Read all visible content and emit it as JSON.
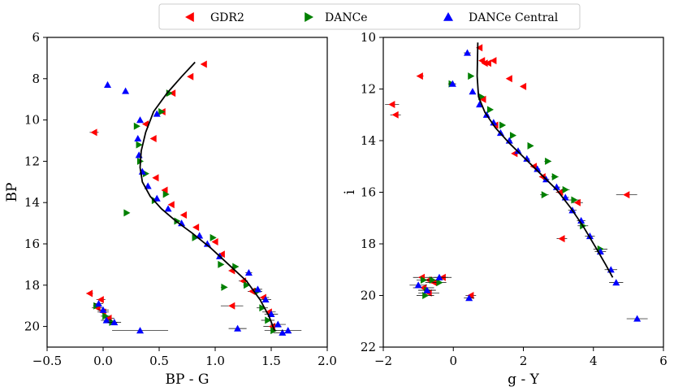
{
  "legend": {
    "entries": [
      {
        "name": "GDR2",
        "color": "#ff0000",
        "marker": "triangle-left"
      },
      {
        "name": "DANCe",
        "color": "#008000",
        "marker": "triangle-right"
      },
      {
        "name": "DANCe Central",
        "color": "#0000ff",
        "marker": "triangle-up"
      }
    ]
  },
  "chart_data": [
    {
      "type": "scatter",
      "title": "",
      "xlabel": "BP - G",
      "ylabel": "BP",
      "xlim": [
        -0.5,
        2.0
      ],
      "ylim": [
        21,
        6
      ],
      "y_inverted": true,
      "xticks": [
        "−0.5",
        "0.0",
        "0.5",
        "1.0",
        "1.5",
        "2.0"
      ],
      "xtick_values": [
        -0.5,
        0.0,
        0.5,
        1.0,
        1.5,
        2.0
      ],
      "yticks": [
        "6",
        "8",
        "10",
        "12",
        "14",
        "16",
        "18",
        "20"
      ],
      "ytick_values": [
        6,
        8,
        10,
        12,
        14,
        16,
        18,
        20
      ],
      "grid": false,
      "legend_position": "top-center",
      "isochrone": {
        "color": "#000000",
        "x": [
          0.82,
          0.7,
          0.57,
          0.45,
          0.38,
          0.34,
          0.33,
          0.35,
          0.42,
          0.52,
          0.65,
          0.8,
          0.96,
          1.12,
          1.28,
          1.4,
          1.48,
          1.53
        ],
        "y": [
          7.2,
          7.9,
          8.7,
          9.6,
          10.6,
          11.5,
          12.3,
          13.0,
          13.7,
          14.3,
          14.9,
          15.5,
          16.2,
          17.0,
          17.8,
          18.7,
          19.5,
          20.2
        ]
      },
      "series": [
        {
          "name": "GDR2",
          "color": "#ff0000",
          "marker": "triangle-left",
          "x": [
            0.9,
            0.78,
            0.62,
            0.53,
            0.38,
            0.45,
            -0.08,
            0.47,
            0.55,
            0.61,
            0.72,
            0.83,
            1.0,
            1.06,
            1.15,
            1.25,
            1.33,
            1.43,
            1.48,
            1.51,
            1.15,
            -0.12,
            -0.02,
            0.0,
            0.05,
            -0.05
          ],
          "y": [
            7.3,
            7.9,
            8.7,
            9.6,
            10.2,
            10.9,
            10.6,
            12.8,
            13.4,
            14.1,
            14.6,
            15.2,
            15.9,
            16.5,
            17.3,
            17.8,
            18.3,
            18.6,
            19.3,
            20.0,
            19.0,
            18.4,
            18.7,
            19.3,
            19.6,
            19.1
          ],
          "xerr": [
            0.01,
            0.01,
            0.01,
            0.01,
            0.01,
            0.01,
            0.04,
            0.01,
            0.01,
            0.01,
            0.01,
            0.01,
            0.02,
            0.02,
            0.03,
            0.04,
            0.04,
            0.05,
            0.06,
            0.08,
            0.1,
            0.03,
            0.04,
            0.05,
            0.05,
            0.05
          ]
        },
        {
          "name": "DANCe",
          "color": "#008000",
          "marker": "triangle-right",
          "x": [
            0.59,
            0.52,
            0.3,
            0.32,
            0.33,
            0.38,
            0.21,
            0.46,
            0.56,
            0.66,
            0.82,
            0.98,
            1.05,
            1.08,
            1.18,
            1.28,
            1.38,
            1.42,
            1.47,
            1.52,
            -0.06,
            0.02,
            0.08
          ],
          "y": [
            8.7,
            9.6,
            10.3,
            11.2,
            12.0,
            12.6,
            14.5,
            13.9,
            13.6,
            14.9,
            15.7,
            15.7,
            17.0,
            18.1,
            17.1,
            18.0,
            18.3,
            19.1,
            19.7,
            20.2,
            19.0,
            19.5,
            19.8
          ],
          "xerr": [
            0.01,
            0.01,
            0.01,
            0.01,
            0.01,
            0.01,
            0.02,
            0.01,
            0.01,
            0.01,
            0.02,
            0.02,
            0.02,
            0.03,
            0.03,
            0.03,
            0.04,
            0.05,
            0.06,
            0.08,
            0.03,
            0.04,
            0.05
          ]
        },
        {
          "name": "DANCe Central",
          "color": "#0000ff",
          "marker": "triangle-up",
          "x": [
            0.04,
            0.2,
            0.48,
            0.33,
            0.31,
            0.32,
            0.35,
            0.4,
            0.48,
            0.58,
            0.7,
            0.86,
            0.93,
            1.04,
            1.3,
            1.38,
            1.45,
            1.5,
            1.56,
            1.6,
            1.65,
            1.2,
            0.33,
            -0.04,
            0.0,
            0.03,
            0.1
          ],
          "y": [
            8.3,
            8.6,
            9.7,
            10.0,
            10.9,
            11.7,
            12.5,
            13.2,
            13.8,
            14.3,
            15.0,
            15.6,
            16.0,
            16.6,
            17.4,
            18.2,
            18.7,
            19.4,
            19.9,
            20.3,
            20.2,
            20.1,
            20.2,
            18.9,
            19.2,
            19.7,
            19.8
          ],
          "xerr": [
            0.01,
            0.01,
            0.01,
            0.01,
            0.01,
            0.01,
            0.01,
            0.01,
            0.01,
            0.01,
            0.01,
            0.02,
            0.02,
            0.02,
            0.03,
            0.04,
            0.05,
            0.06,
            0.07,
            0.08,
            0.12,
            0.08,
            0.25,
            0.04,
            0.05,
            0.05,
            0.06
          ]
        }
      ]
    },
    {
      "type": "scatter",
      "title": "",
      "xlabel": "g - Y",
      "ylabel": "i",
      "xlim": [
        -2,
        6
      ],
      "ylim": [
        22,
        10
      ],
      "y_inverted": true,
      "xticks": [
        "−2",
        "0",
        "2",
        "4",
        "6"
      ],
      "xtick_values": [
        -2,
        0,
        2,
        4,
        6
      ],
      "yticks": [
        "10",
        "12",
        "14",
        "16",
        "18",
        "20",
        "22"
      ],
      "ytick_values": [
        10,
        12,
        14,
        16,
        18,
        20,
        22
      ],
      "grid": false,
      "isochrone": {
        "color": "#000000",
        "x": [
          0.7,
          0.68,
          0.72,
          0.9,
          1.2,
          1.6,
          2.05,
          2.5,
          2.95,
          3.35,
          3.7,
          4.05,
          4.35,
          4.55
        ],
        "y": [
          10.2,
          11.5,
          12.3,
          12.9,
          13.5,
          14.1,
          14.7,
          15.3,
          15.9,
          16.6,
          17.3,
          18.1,
          18.8,
          19.3
        ]
      },
      "series": [
        {
          "name": "GDR2",
          "color": "#ff0000",
          "marker": "triangle-left",
          "x": [
            0.75,
            0.9,
            1.15,
            1.0,
            0.82,
            -0.95,
            1.6,
            2.0,
            0.85,
            -1.75,
            -1.65,
            1.2,
            1.75,
            2.55,
            3.05,
            3.55,
            3.1,
            4.95,
            2.3,
            -0.9,
            -0.7,
            -0.55,
            -0.3,
            -0.85,
            -0.7,
            0.5
          ],
          "y": [
            10.4,
            11.0,
            10.9,
            11.0,
            10.9,
            11.5,
            11.6,
            11.9,
            12.4,
            12.6,
            13.0,
            13.4,
            14.5,
            15.4,
            16.0,
            16.4,
            17.8,
            16.1,
            15.0,
            19.3,
            19.4,
            19.5,
            19.3,
            19.7,
            19.9,
            20.0
          ],
          "xerr": [
            0.05,
            0.05,
            0.06,
            0.05,
            0.05,
            0.1,
            0.06,
            0.08,
            0.05,
            0.2,
            0.15,
            0.06,
            0.08,
            0.1,
            0.12,
            0.15,
            0.15,
            0.3,
            0.1,
            0.25,
            0.25,
            0.25,
            0.25,
            0.3,
            0.3,
            0.15
          ]
        },
        {
          "name": "DANCe",
          "color": "#008000",
          "marker": "triangle-right",
          "x": [
            -0.05,
            0.5,
            0.8,
            1.05,
            1.4,
            1.7,
            2.2,
            2.7,
            2.9,
            3.2,
            3.45,
            2.6,
            3.7,
            4.2,
            -0.85,
            -0.6,
            -0.4,
            -0.75,
            -0.8
          ],
          "y": [
            11.8,
            11.5,
            12.3,
            12.8,
            13.4,
            13.8,
            14.2,
            14.8,
            15.4,
            15.9,
            16.3,
            16.1,
            17.3,
            18.2,
            19.4,
            19.4,
            19.5,
            19.8,
            20.0
          ],
          "xerr": [
            0.1,
            0.08,
            0.06,
            0.06,
            0.06,
            0.07,
            0.08,
            0.1,
            0.1,
            0.12,
            0.15,
            0.12,
            0.15,
            0.2,
            0.2,
            0.2,
            0.2,
            0.25,
            0.25
          ]
        },
        {
          "name": "DANCe Central",
          "color": "#0000ff",
          "marker": "triangle-up",
          "x": [
            0.4,
            -0.02,
            0.55,
            0.75,
            0.95,
            1.15,
            1.35,
            1.6,
            1.85,
            2.1,
            2.4,
            2.65,
            2.95,
            3.2,
            3.4,
            3.65,
            3.9,
            4.2,
            4.5,
            4.65,
            5.25,
            0.45,
            -1.0,
            -0.75,
            -0.4
          ],
          "y": [
            10.6,
            11.8,
            12.1,
            12.6,
            13.0,
            13.3,
            13.7,
            14.0,
            14.4,
            14.7,
            15.1,
            15.5,
            15.8,
            16.2,
            16.7,
            17.1,
            17.7,
            18.3,
            19.0,
            19.5,
            20.9,
            20.1,
            19.6,
            19.8,
            19.3
          ],
          "xerr": [
            0.1,
            0.1,
            0.05,
            0.05,
            0.06,
            0.06,
            0.06,
            0.07,
            0.07,
            0.08,
            0.08,
            0.09,
            0.1,
            0.1,
            0.12,
            0.12,
            0.14,
            0.16,
            0.18,
            0.2,
            0.3,
            0.15,
            0.25,
            0.25,
            0.25
          ]
        }
      ]
    }
  ]
}
